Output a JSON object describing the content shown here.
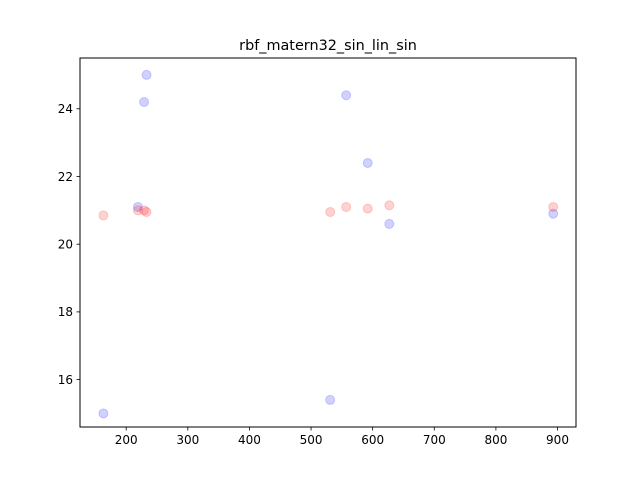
{
  "chart_data": {
    "type": "scatter",
    "title": "rbf_matern32_sin_lin_sin",
    "xlabel": "",
    "ylabel": "",
    "xlim": [
      125,
      930
    ],
    "ylim": [
      14.6,
      25.5
    ],
    "xticks": [
      200,
      300,
      400,
      500,
      600,
      700,
      800,
      900
    ],
    "yticks": [
      16,
      18,
      20,
      22,
      24
    ],
    "grid": false,
    "legend": "none",
    "series": [
      {
        "color": "#0000ff",
        "x": [
          163,
          219,
          229,
          233,
          531,
          557,
          592,
          627,
          893
        ],
        "y": [
          15.0,
          21.1,
          24.2,
          25.0,
          15.4,
          24.4,
          22.4,
          20.6,
          20.9
        ]
      },
      {
        "color": "#ff0000",
        "x": [
          163,
          219,
          229,
          233,
          531,
          557,
          592,
          627,
          893
        ],
        "y": [
          20.85,
          21.0,
          21.0,
          20.95,
          20.95,
          21.1,
          21.05,
          21.15,
          21.1
        ]
      }
    ]
  }
}
